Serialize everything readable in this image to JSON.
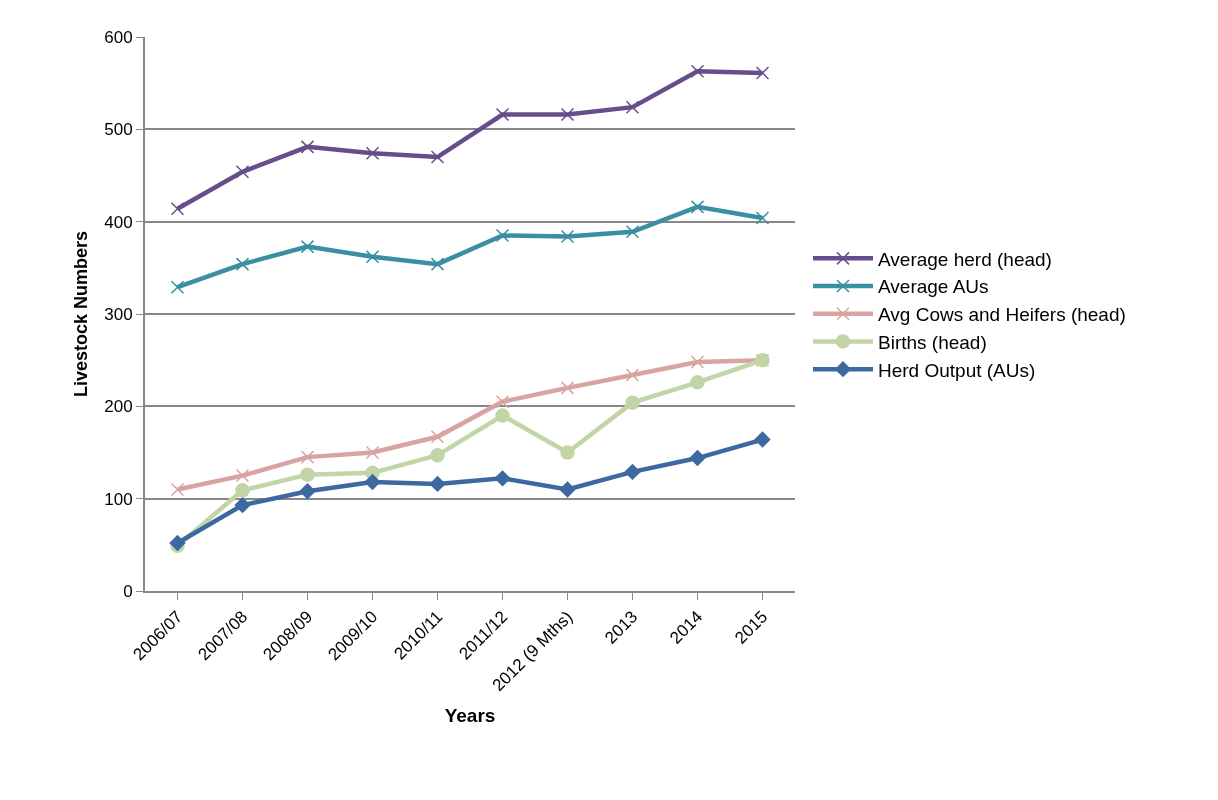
{
  "chart_data": {
    "type": "line",
    "xlabel": "Years",
    "ylabel": "Livestock Numbers",
    "categories": [
      "2006/07",
      "2007/08",
      "2008/09",
      "2009/10",
      "2010/11",
      "2011/12",
      "2012 (9 Mths)",
      "2013",
      "2014",
      "2015"
    ],
    "series": [
      {
        "name": "Average herd (head)",
        "color": "#664d8c",
        "marker": "cross",
        "values": [
          414,
          454,
          481,
          474,
          470,
          516,
          516,
          524,
          563,
          561
        ]
      },
      {
        "name": "Average AUs",
        "color": "#3a8fa3",
        "marker": "cross",
        "values": [
          329,
          354,
          373,
          362,
          354,
          385,
          384,
          389,
          416,
          404
        ]
      },
      {
        "name": "Avg Cows and Heifers (head)",
        "color": "#d9a3a1",
        "marker": "cross",
        "values": [
          110,
          125,
          145,
          150,
          167,
          205,
          220,
          234,
          248,
          250
        ]
      },
      {
        "name": "Births (head)",
        "color": "#c2d5a6",
        "marker": "circle",
        "values": [
          49,
          109,
          126,
          128,
          147,
          190,
          150,
          204,
          226,
          250
        ]
      },
      {
        "name": "Herd Output (AUs)",
        "color": "#3c6aa0",
        "marker": "diamond",
        "values": [
          52,
          93,
          108,
          118,
          116,
          122,
          110,
          129,
          144,
          164
        ]
      }
    ],
    "ylim": [
      0,
      600
    ],
    "yticks": [
      0,
      100,
      200,
      300,
      400,
      500,
      600
    ],
    "grid": "y",
    "legend": "right",
    "line_style": "solid"
  }
}
